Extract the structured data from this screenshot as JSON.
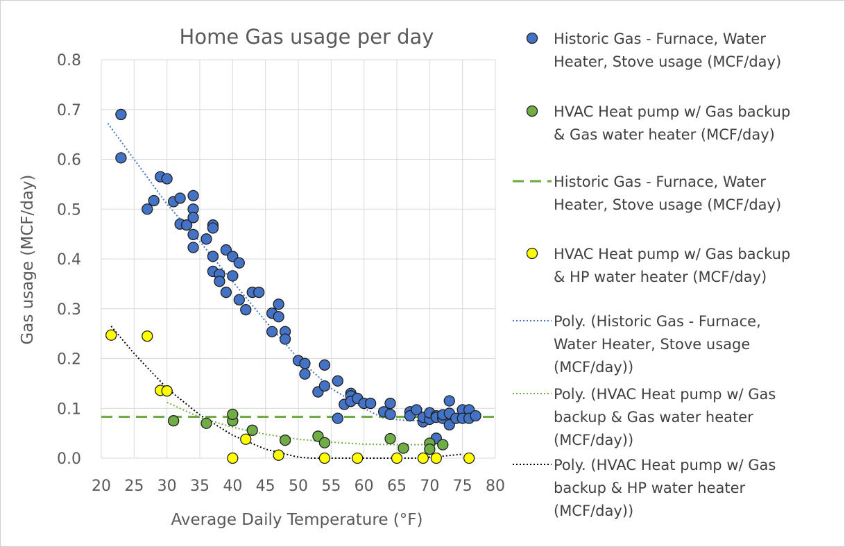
{
  "chart_data": {
    "type": "scatter",
    "title": "Home Gas usage per day",
    "xlabel": "Average Daily Temperature (°F)",
    "ylabel": "Gas usage (MCF/day)",
    "xlim": [
      20,
      80
    ],
    "ylim": [
      0,
      0.8
    ],
    "xticks": [
      20,
      25,
      30,
      35,
      40,
      45,
      50,
      55,
      60,
      65,
      70,
      75,
      80
    ],
    "yticks": [
      0,
      0.1,
      0.2,
      0.3,
      0.4,
      0.5,
      0.6,
      0.7,
      0.8
    ],
    "xtick_labels": [
      "20",
      "25",
      "30",
      "35",
      "40",
      "45",
      "50",
      "55",
      "60",
      "65",
      "70",
      "75",
      "80"
    ],
    "ytick_labels": [
      "0.0",
      "0.1",
      "0.2",
      "0.3",
      "0.4",
      "0.5",
      "0.6",
      "0.7",
      "0.8"
    ],
    "grid": true,
    "legend_position": "right",
    "series": [
      {
        "name": "Historic Gas - Furnace, Water Heater, Stove usage (MCF/day)",
        "kind": "scatter",
        "color": "#4472c4",
        "points": [
          [
            23,
            0.69
          ],
          [
            23,
            0.603
          ],
          [
            27,
            0.5
          ],
          [
            28,
            0.517
          ],
          [
            29,
            0.565
          ],
          [
            30,
            0.561
          ],
          [
            31,
            0.515
          ],
          [
            32,
            0.522
          ],
          [
            32,
            0.47
          ],
          [
            33,
            0.468
          ],
          [
            34,
            0.527
          ],
          [
            34,
            0.5
          ],
          [
            34,
            0.483
          ],
          [
            34,
            0.449
          ],
          [
            34,
            0.423
          ],
          [
            36,
            0.44
          ],
          [
            37,
            0.468
          ],
          [
            37,
            0.462
          ],
          [
            37,
            0.405
          ],
          [
            37,
            0.375
          ],
          [
            38,
            0.369
          ],
          [
            38,
            0.355
          ],
          [
            39,
            0.418
          ],
          [
            39,
            0.333
          ],
          [
            40,
            0.405
          ],
          [
            40,
            0.366
          ],
          [
            41,
            0.392
          ],
          [
            41,
            0.318
          ],
          [
            42,
            0.298
          ],
          [
            43,
            0.333
          ],
          [
            44,
            0.333
          ],
          [
            46,
            0.291
          ],
          [
            46,
            0.254
          ],
          [
            47,
            0.309
          ],
          [
            47,
            0.284
          ],
          [
            48,
            0.254
          ],
          [
            48,
            0.239
          ],
          [
            50,
            0.196
          ],
          [
            51,
            0.19
          ],
          [
            51,
            0.169
          ],
          [
            53,
            0.133
          ],
          [
            54,
            0.187
          ],
          [
            54,
            0.145
          ],
          [
            56,
            0.155
          ],
          [
            56,
            0.08
          ],
          [
            57,
            0.108
          ],
          [
            58,
            0.13
          ],
          [
            58,
            0.125
          ],
          [
            58,
            0.114
          ],
          [
            59,
            0.12
          ],
          [
            60,
            0.11
          ],
          [
            61,
            0.11
          ],
          [
            63,
            0.093
          ],
          [
            64,
            0.11
          ],
          [
            64,
            0.088
          ],
          [
            67,
            0.093
          ],
          [
            67,
            0.085
          ],
          [
            68,
            0.097
          ],
          [
            69,
            0.073
          ],
          [
            69,
            0.082
          ],
          [
            70,
            0.078
          ],
          [
            70,
            0.091
          ],
          [
            71,
            0.04
          ],
          [
            71,
            0.085
          ],
          [
            71,
            0.082
          ],
          [
            72,
            0.08
          ],
          [
            72,
            0.087
          ],
          [
            73,
            0.115
          ],
          [
            73,
            0.09
          ],
          [
            73,
            0.067
          ],
          [
            74,
            0.08
          ],
          [
            75,
            0.097
          ],
          [
            75,
            0.08
          ],
          [
            76,
            0.097
          ],
          [
            76,
            0.08
          ],
          [
            77,
            0.085
          ]
        ]
      },
      {
        "name": "HVAC Heat pump w/ Gas backup & Gas water heater (MCF/day)",
        "kind": "scatter",
        "color": "#70ad47",
        "points": [
          [
            30,
            0.135
          ],
          [
            31,
            0.075
          ],
          [
            36,
            0.07
          ],
          [
            40,
            0.075
          ],
          [
            40,
            0.088
          ],
          [
            43,
            0.056
          ],
          [
            48,
            0.036
          ],
          [
            53,
            0.044
          ],
          [
            54,
            0.031
          ],
          [
            64,
            0.039
          ],
          [
            66,
            0.02
          ],
          [
            70,
            0.03
          ],
          [
            70,
            0.018
          ],
          [
            72,
            0.027
          ]
        ]
      },
      {
        "name": "Historic Gas - Furnace, Water Heater, Stove usage (MCF/day)",
        "kind": "hline",
        "color": "#70ad47",
        "y": 0.083
      },
      {
        "name": "HVAC Heat pump w/ Gas backup & HP water heater (MCF/day)",
        "kind": "scatter",
        "color": "#ffff00",
        "points": [
          [
            21.5,
            0.247
          ],
          [
            27,
            0.245
          ],
          [
            29,
            0.136
          ],
          [
            30,
            0.135
          ],
          [
            40,
            0.0
          ],
          [
            42,
            0.038
          ],
          [
            47,
            0.006
          ],
          [
            54,
            0.0
          ],
          [
            59,
            0.0
          ],
          [
            65,
            0.0
          ],
          [
            69,
            0.0
          ],
          [
            71,
            0.0
          ],
          [
            76,
            0.0
          ]
        ]
      },
      {
        "name": "Poly. (Historic Gas - Furnace, Water Heater, Stove usage (MCF/day))",
        "kind": "trend",
        "color": "#4472c4",
        "points": [
          [
            21,
            0.672
          ],
          [
            25,
            0.6
          ],
          [
            30,
            0.51
          ],
          [
            35,
            0.435
          ],
          [
            40,
            0.355
          ],
          [
            45,
            0.275
          ],
          [
            50,
            0.2
          ],
          [
            55,
            0.14
          ],
          [
            60,
            0.1
          ],
          [
            63,
            0.08
          ],
          [
            67,
            0.075
          ],
          [
            70,
            0.076
          ],
          [
            73,
            0.082
          ],
          [
            76,
            0.09
          ]
        ]
      },
      {
        "name": "Poly. (HVAC Heat pump w/ Gas backup & Gas water heater (MCF/day))",
        "kind": "trend",
        "color": "#70ad47",
        "points": [
          [
            30,
            0.112
          ],
          [
            35,
            0.082
          ],
          [
            40,
            0.062
          ],
          [
            45,
            0.048
          ],
          [
            50,
            0.038
          ],
          [
            55,
            0.032
          ],
          [
            60,
            0.028
          ],
          [
            65,
            0.027
          ],
          [
            70,
            0.027
          ],
          [
            72,
            0.028
          ]
        ]
      },
      {
        "name": "Poly. (HVAC Heat pump w/ Gas backup & HP water heater (MCF/day))",
        "kind": "trend",
        "color": "#000000",
        "points": [
          [
            21.5,
            0.265
          ],
          [
            25,
            0.21
          ],
          [
            30,
            0.14
          ],
          [
            35,
            0.087
          ],
          [
            40,
            0.046
          ],
          [
            45,
            0.018
          ],
          [
            50,
            0.002
          ],
          [
            52,
            0.0
          ],
          [
            68,
            0.0
          ],
          [
            72,
            0.004
          ],
          [
            75,
            0.008
          ]
        ]
      }
    ]
  },
  "legend": {
    "items": [
      {
        "marker": "circle",
        "color": "#4472c4",
        "lines": [
          "Historic Gas - Furnace, Water",
          "Heater, Stove usage (MCF/day)"
        ]
      },
      {
        "marker": "circle",
        "color": "#70ad47",
        "lines": [
          "HVAC Heat pump w/ Gas backup",
          "& Gas water heater (MCF/day)"
        ]
      },
      {
        "marker": "dash",
        "color": "#70ad47",
        "lines": [
          "Historic Gas - Furnace, Water",
          "Heater, Stove usage (MCF/day)"
        ]
      },
      {
        "marker": "circle",
        "color": "#ffff00",
        "lines": [
          "HVAC Heat pump w/ Gas backup",
          "& HP water heater (MCF/day)"
        ]
      },
      {
        "marker": "dot",
        "color": "#4472c4",
        "lines": [
          "Poly. (Historic Gas - Furnace,",
          "Water Heater, Stove usage",
          "(MCF/day))"
        ]
      },
      {
        "marker": "dot",
        "color": "#70ad47",
        "lines": [
          "Poly. (HVAC Heat pump w/ Gas",
          "backup & Gas water heater",
          "(MCF/day))"
        ]
      },
      {
        "marker": "dot",
        "color": "#000000",
        "lines": [
          "Poly. (HVAC Heat pump w/ Gas",
          "backup & HP water heater",
          "(MCF/day))"
        ]
      }
    ]
  }
}
